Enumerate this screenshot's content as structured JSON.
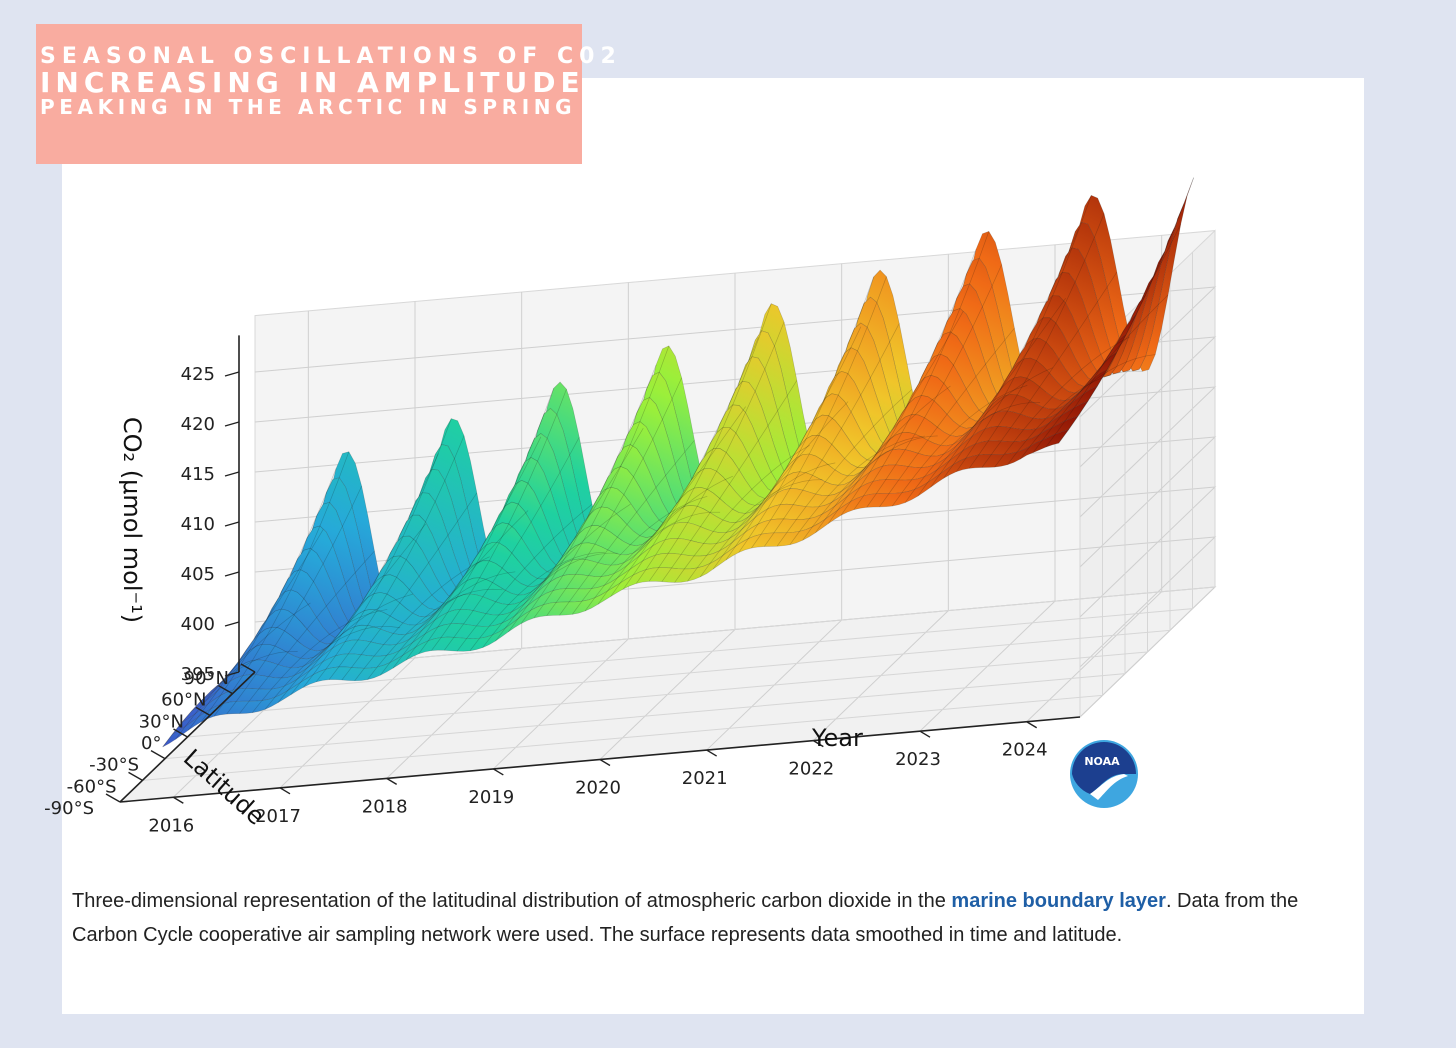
{
  "banner": {
    "line1": "Seasonal oscillations of C02",
    "line2": "increasing in amplitude",
    "line3": "peaking in the arctic in spring"
  },
  "caption": {
    "before": "Three-dimensional representation of the latitudinal distribution of atmospheric carbon dioxide in the ",
    "link": "marine boundary layer",
    "after": ". Data from the Carbon Cycle cooperative air sampling network were used. The surface represents data smoothed in time and latitude."
  },
  "logo": {
    "text": "NOAA",
    "icon": "noaa-logo-icon"
  },
  "chart_data": {
    "type": "surface",
    "title": "",
    "zlabel": "CO₂ (μmol mol⁻¹)",
    "xlabel": "Year",
    "ylabel": "Latitude",
    "z_ticks": [
      395,
      400,
      405,
      410,
      415,
      420,
      425
    ],
    "x_ticks": [
      "2016",
      "2017",
      "2018",
      "2019",
      "2020",
      "2021",
      "2022",
      "2023",
      "2024"
    ],
    "y_ticks": [
      "90°N",
      "60°N",
      "30°N",
      "0°",
      "-30°S",
      "-60°S",
      "-90°S"
    ],
    "xlim": [
      2015.5,
      2024.5
    ],
    "ylim": [
      -90,
      90
    ],
    "zlim": [
      395,
      428
    ],
    "grid": true,
    "colormap": "turbo",
    "series": [
      {
        "x": [
          2016,
          2017,
          2018,
          2019,
          2020,
          2021,
          2022,
          2023,
          2024
        ],
        "values": [
          410,
          412,
          415,
          417,
          421,
          423,
          426,
          429,
          431
        ]
      },
      {
        "x": [
          2016,
          2017,
          2018,
          2019,
          2020,
          2021,
          2022,
          2023,
          2024
        ],
        "values": [
          401,
          404,
          406,
          408,
          411,
          413,
          416,
          419,
          422
        ]
      }
    ]
  }
}
